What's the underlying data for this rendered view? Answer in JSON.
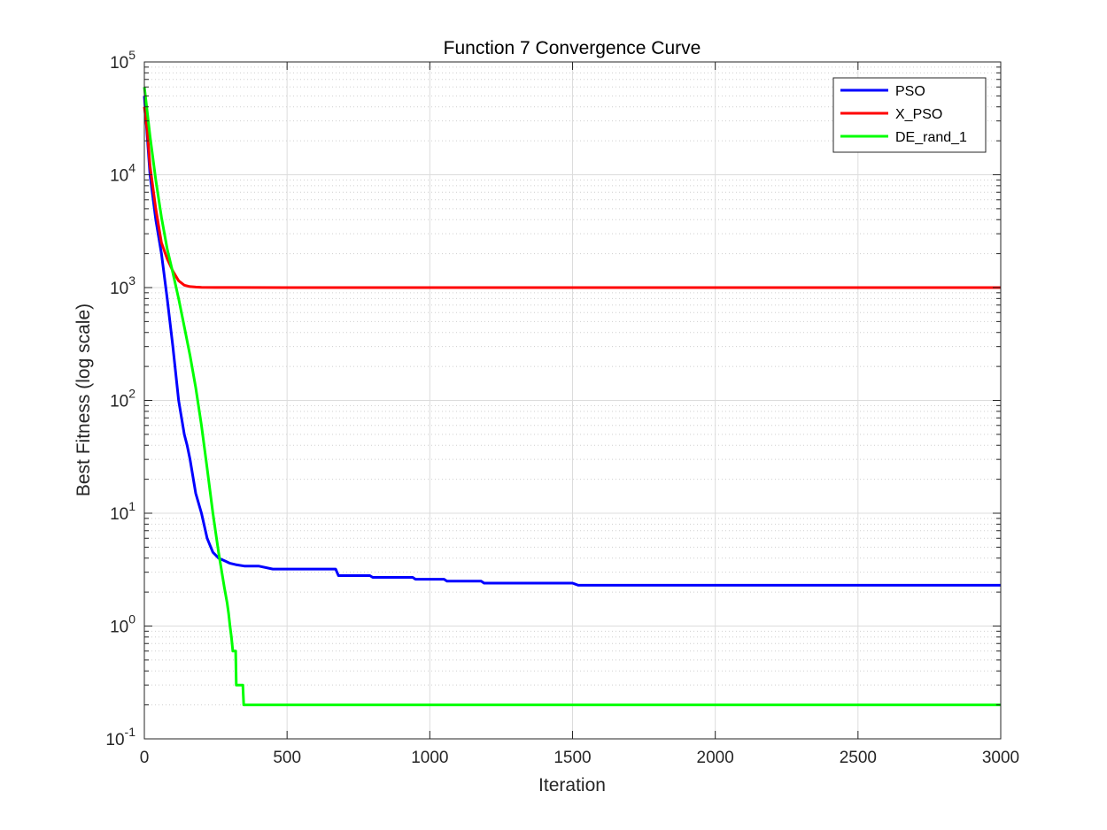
{
  "chart_data": {
    "type": "line",
    "title": "Function 7 Convergence Curve",
    "xlabel": "Iteration",
    "ylabel": "Best Fitness (log scale)",
    "xlim": [
      0,
      3000
    ],
    "ylim": [
      0.1,
      100000
    ],
    "yscale": "log",
    "grid": true,
    "legend_position": "top-right",
    "x_ticks": [
      0,
      500,
      1000,
      1500,
      2000,
      2500,
      3000
    ],
    "y_ticks": [
      {
        "value": 0.1,
        "base": "10",
        "exp": "-1"
      },
      {
        "value": 1,
        "base": "10",
        "exp": "0"
      },
      {
        "value": 10,
        "base": "10",
        "exp": "1"
      },
      {
        "value": 100,
        "base": "10",
        "exp": "2"
      },
      {
        "value": 1000,
        "base": "10",
        "exp": "3"
      },
      {
        "value": 10000,
        "base": "10",
        "exp": "4"
      },
      {
        "value": 100000,
        "base": "10",
        "exp": "5"
      }
    ],
    "series": [
      {
        "name": "PSO",
        "color": "#0000ff",
        "x": [
          0,
          20,
          40,
          60,
          80,
          100,
          120,
          140,
          150,
          160,
          180,
          200,
          220,
          240,
          260,
          280,
          300,
          320,
          350,
          400,
          450,
          670,
          680,
          700,
          790,
          800,
          850,
          940,
          950,
          1000,
          1050,
          1060,
          1100,
          1180,
          1190,
          1300,
          1500,
          1510,
          1520,
          2000,
          2500,
          3000
        ],
        "y": [
          50000,
          10000,
          4000,
          2000,
          800,
          300,
          100,
          50,
          40,
          30,
          15,
          10,
          6,
          4.5,
          4,
          3.8,
          3.6,
          3.5,
          3.4,
          3.4,
          3.2,
          3.2,
          2.8,
          2.8,
          2.8,
          2.7,
          2.7,
          2.7,
          2.6,
          2.6,
          2.6,
          2.5,
          2.5,
          2.5,
          2.4,
          2.4,
          2.4,
          2.35,
          2.3,
          2.3,
          2.3,
          2.3
        ]
      },
      {
        "name": "X_PSO",
        "color": "#ff0000",
        "x": [
          0,
          10,
          20,
          40,
          60,
          80,
          100,
          120,
          140,
          160,
          180,
          200,
          250,
          300,
          500,
          1000,
          1500,
          2000,
          2500,
          3000
        ],
        "y": [
          40000,
          25000,
          12000,
          5000,
          2500,
          1800,
          1400,
          1150,
          1050,
          1020,
          1010,
          1005,
          1002,
          1001,
          1000,
          1000,
          1000,
          1000,
          1000,
          1000
        ]
      },
      {
        "name": "DE_rand_1",
        "color": "#00ff00",
        "x": [
          0,
          20,
          40,
          60,
          80,
          100,
          120,
          140,
          160,
          180,
          200,
          220,
          240,
          260,
          280,
          290,
          295,
          300,
          305,
          310,
          320,
          322,
          345,
          348,
          350,
          500,
          1000,
          1500,
          2000,
          2500,
          3000
        ],
        "y": [
          60000,
          22000,
          9000,
          4200,
          2200,
          1350,
          800,
          450,
          250,
          130,
          60,
          25,
          10,
          4.5,
          2.2,
          1.6,
          1.3,
          1.0,
          0.8,
          0.6,
          0.6,
          0.3,
          0.3,
          0.2,
          0.2,
          0.2,
          0.2,
          0.2,
          0.2,
          0.2,
          0.2
        ]
      }
    ]
  }
}
